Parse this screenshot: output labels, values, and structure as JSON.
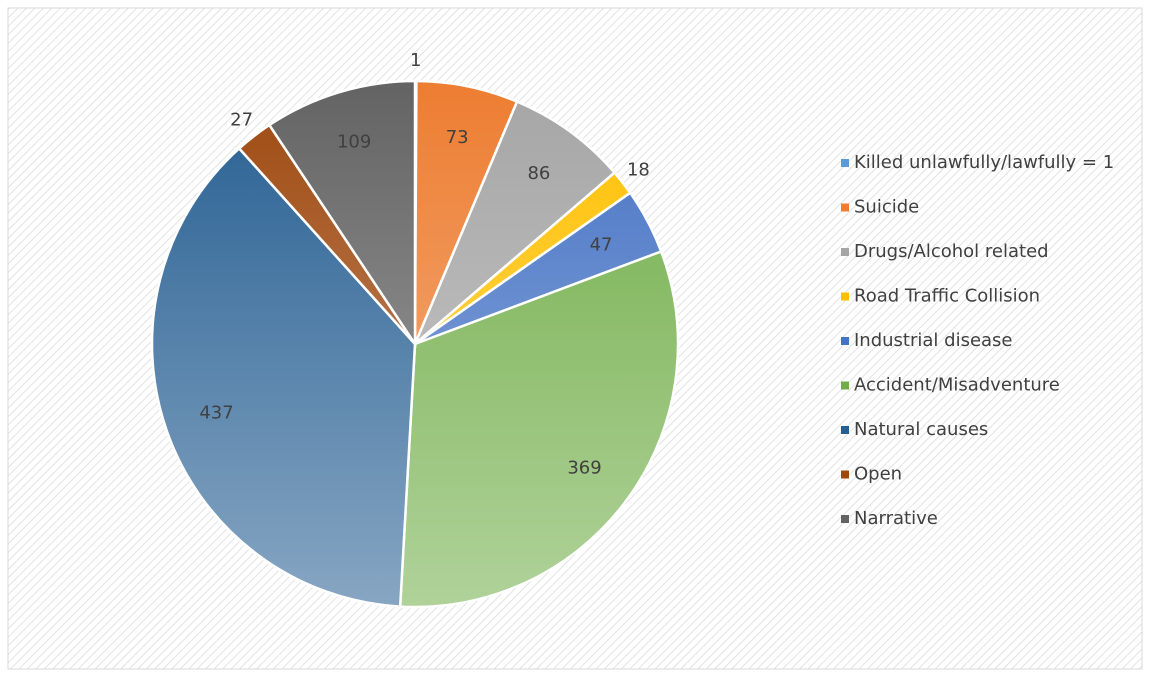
{
  "chart_data": {
    "type": "pie",
    "categories": [
      "Killed unlawfully/lawfully = 1",
      "Suicide",
      "Drugs/Alcohol related",
      "Road Traffic Collision",
      "Industrial disease",
      "Accident/Misadventure",
      "Natural causes",
      "Open",
      "Narrative"
    ],
    "values": [
      1,
      73,
      86,
      18,
      47,
      369,
      437,
      27,
      109
    ],
    "colors": [
      "#5b9bd5",
      "#ed7d31",
      "#a5a5a5",
      "#ffc000",
      "#4472c4",
      "#70ad47",
      "#255e91",
      "#9e480e",
      "#636363"
    ],
    "legend": "right"
  }
}
